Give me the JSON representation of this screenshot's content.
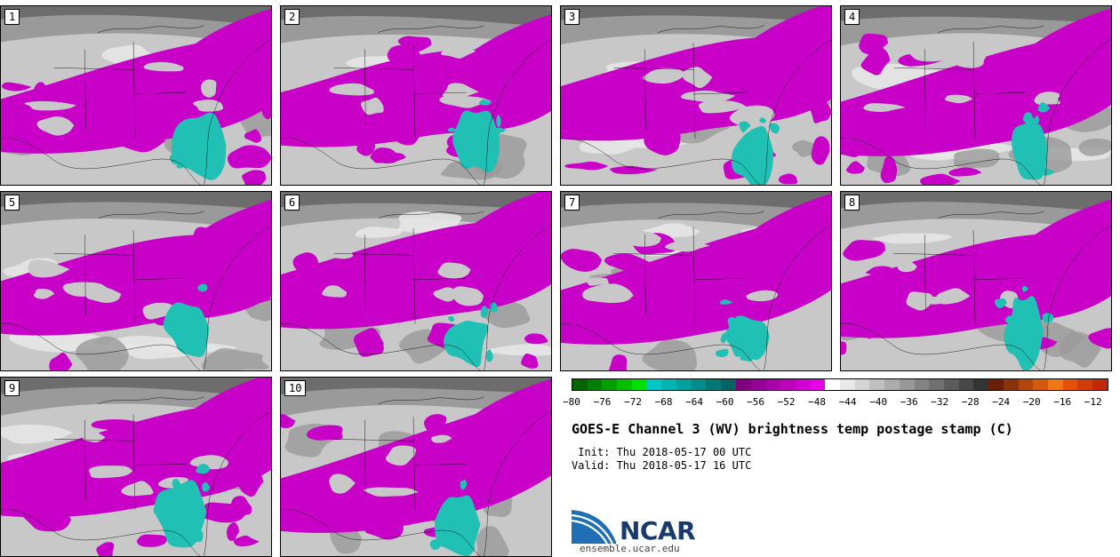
{
  "panels": [
    {
      "number": "1"
    },
    {
      "number": "2"
    },
    {
      "number": "3"
    },
    {
      "number": "4"
    },
    {
      "number": "5"
    },
    {
      "number": "6"
    },
    {
      "number": "7"
    },
    {
      "number": "8"
    },
    {
      "number": "9"
    },
    {
      "number": "10"
    }
  ],
  "colorbar": {
    "colors": [
      "#006400",
      "#008000",
      "#00a000",
      "#00c000",
      "#00e000",
      "#00c8c8",
      "#00b4b4",
      "#00a0a0",
      "#008c8c",
      "#007878",
      "#006464",
      "#800080",
      "#960096",
      "#aa00aa",
      "#be00be",
      "#d200d2",
      "#e600e6",
      "#ffffff",
      "#e8e8e8",
      "#d4d4d4",
      "#c0c0c0",
      "#acacac",
      "#989898",
      "#848484",
      "#707070",
      "#5c5c5c",
      "#484848",
      "#343434",
      "#6a1e06",
      "#8c3208",
      "#b4460a",
      "#d25a0c",
      "#f07814",
      "#e6500a",
      "#d03c0a",
      "#c02806"
    ],
    "min": -80,
    "max": -10,
    "ticks": [
      "−80",
      "−76",
      "−72",
      "−68",
      "−64",
      "−60",
      "−56",
      "−52",
      "−48",
      "−44",
      "−40",
      "−36",
      "−32",
      "−28",
      "−24",
      "−20",
      "−16",
      "−12"
    ],
    "tick_values": [
      -80,
      -76,
      -72,
      -68,
      -64,
      -60,
      -56,
      -52,
      -48,
      -44,
      -40,
      -36,
      -32,
      -28,
      -24,
      -20,
      -16,
      -12
    ]
  },
  "title": "GOES-E Channel 3 (WV) brightness temp postage stamp (C)",
  "init": " Init: Thu 2018-05-17 00 UTC",
  "valid": "Valid: Thu 2018-05-17 16 UTC",
  "logo": {
    "text": "NCAR",
    "site": "ensemble.ucar.edu",
    "color_primary": "#1a3a6b",
    "color_accent": "#3c87c8"
  },
  "palette": {
    "magenta": "#c800c8",
    "teal": "#20c0b4",
    "grey_light": "#c8c8c8",
    "grey_mid": "#9a9a9a",
    "grey_dark": "#5a5a5a"
  }
}
